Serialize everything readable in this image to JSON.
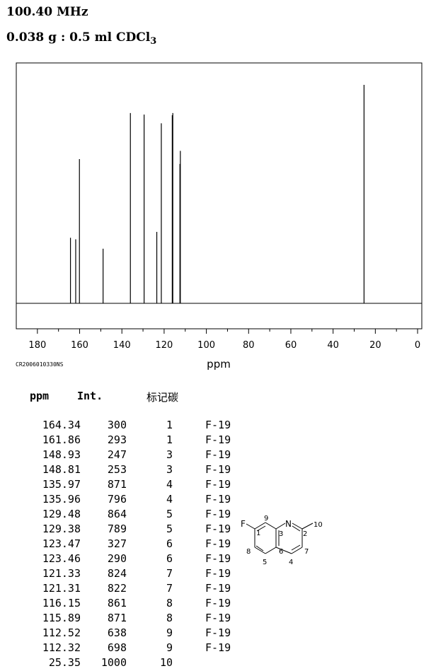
{
  "header": {
    "frequency": "100.40 MHz",
    "sample_main": "0.038 g : 0.5 ml CDCl",
    "sample_sub": "3"
  },
  "chart_data": {
    "type": "line",
    "xlabel": "ppm",
    "xlim": [
      190,
      -2
    ],
    "x_ticks": [
      180,
      160,
      140,
      120,
      100,
      80,
      60,
      40,
      20,
      0
    ],
    "x_tick_labels": [
      "180",
      "160",
      "140",
      "120",
      "100",
      "80",
      "60",
      "40",
      "20",
      "0"
    ],
    "peaks": [
      {
        "ppm": 164.34,
        "intensity": 300
      },
      {
        "ppm": 161.86,
        "intensity": 293
      },
      {
        "ppm": 160.1,
        "intensity": 660
      },
      {
        "ppm": 148.9,
        "intensity": 250
      },
      {
        "ppm": 135.97,
        "intensity": 871
      },
      {
        "ppm": 129.48,
        "intensity": 864
      },
      {
        "ppm": 123.47,
        "intensity": 327
      },
      {
        "ppm": 121.33,
        "intensity": 824
      },
      {
        "ppm": 116.15,
        "intensity": 861
      },
      {
        "ppm": 115.89,
        "intensity": 871
      },
      {
        "ppm": 112.52,
        "intensity": 638
      },
      {
        "ppm": 112.32,
        "intensity": 698
      },
      {
        "ppm": 25.35,
        "intensity": 1000
      }
    ],
    "code_label": "CR2006010330NS"
  },
  "table": {
    "headers": {
      "ppm": "ppm",
      "int": "Int.",
      "mark": "标记碳"
    },
    "rows": [
      {
        "ppm": "164.34",
        "int": "300",
        "carbon": "1",
        "coupling": "F-19"
      },
      {
        "ppm": "161.86",
        "int": "293",
        "carbon": "1",
        "coupling": "F-19"
      },
      {
        "ppm": "148.93",
        "int": "247",
        "carbon": "3",
        "coupling": "F-19"
      },
      {
        "ppm": "148.81",
        "int": "253",
        "carbon": "3",
        "coupling": "F-19"
      },
      {
        "ppm": "135.97",
        "int": "871",
        "carbon": "4",
        "coupling": "F-19"
      },
      {
        "ppm": "135.96",
        "int": "796",
        "carbon": "4",
        "coupling": "F-19"
      },
      {
        "ppm": "129.48",
        "int": "864",
        "carbon": "5",
        "coupling": "F-19"
      },
      {
        "ppm": "129.38",
        "int": "789",
        "carbon": "5",
        "coupling": "F-19"
      },
      {
        "ppm": "123.47",
        "int": "327",
        "carbon": "6",
        "coupling": "F-19"
      },
      {
        "ppm": "123.46",
        "int": "290",
        "carbon": "6",
        "coupling": "F-19"
      },
      {
        "ppm": "121.33",
        "int": "824",
        "carbon": "7",
        "coupling": "F-19"
      },
      {
        "ppm": "121.31",
        "int": "822",
        "carbon": "7",
        "coupling": "F-19"
      },
      {
        "ppm": "116.15",
        "int": "861",
        "carbon": "8",
        "coupling": "F-19"
      },
      {
        "ppm": "115.89",
        "int": "871",
        "carbon": "8",
        "coupling": "F-19"
      },
      {
        "ppm": "112.52",
        "int": "638",
        "carbon": "9",
        "coupling": "F-19"
      },
      {
        "ppm": "112.32",
        "int": "698",
        "carbon": "9",
        "coupling": "F-19"
      },
      {
        "ppm": "25.35",
        "int": "1000",
        "carbon": "10",
        "coupling": ""
      }
    ]
  },
  "molecule": {
    "atom_labels": {
      "F": "F",
      "N": "N",
      "c1": "1",
      "c2": "2",
      "c3": "3",
      "c4": "4",
      "c5": "5",
      "c6": "6",
      "c7": "7",
      "c8": "8",
      "c9": "9",
      "c10": "10"
    }
  }
}
